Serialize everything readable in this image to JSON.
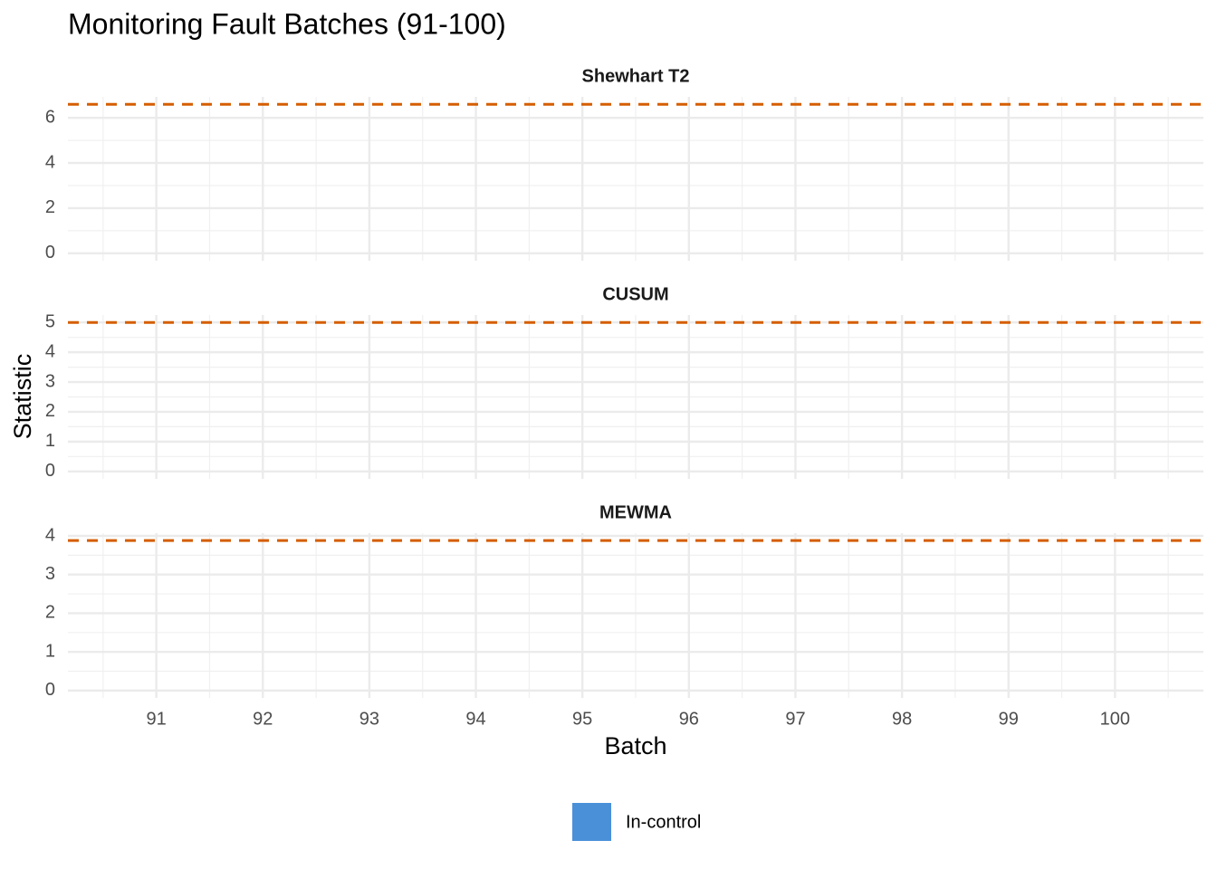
{
  "chart_data": {
    "type": "bar",
    "title": "Monitoring Fault Batches (91-100)",
    "x_label": "Batch",
    "y_label": "Statistic",
    "xlim": [
      90.17,
      100.83
    ],
    "xticks": [
      91,
      92,
      93,
      94,
      95,
      96,
      97,
      98,
      99,
      100
    ],
    "grid": true,
    "legend_position": "bottom",
    "series": [
      {
        "name": "In-control",
        "color": "#4A90D9"
      }
    ],
    "facets": [
      {
        "title": "Shewhart T2",
        "ylim": [
          -0.33,
          6.93
        ],
        "yticks": [
          0,
          2,
          4,
          6
        ],
        "limit": 6.6,
        "limit_color": "#D55E00"
      },
      {
        "title": "CUSUM",
        "ylim": [
          -0.25,
          5.25
        ],
        "yticks": [
          0,
          1,
          2,
          3,
          4,
          5
        ],
        "limit": 5,
        "limit_color": "#D55E00"
      },
      {
        "title": "MEWMA",
        "ylim": [
          -0.19,
          4.07
        ],
        "yticks": [
          0,
          1,
          2,
          3,
          4
        ],
        "limit": 3.88,
        "limit_color": "#D55E00"
      }
    ]
  }
}
